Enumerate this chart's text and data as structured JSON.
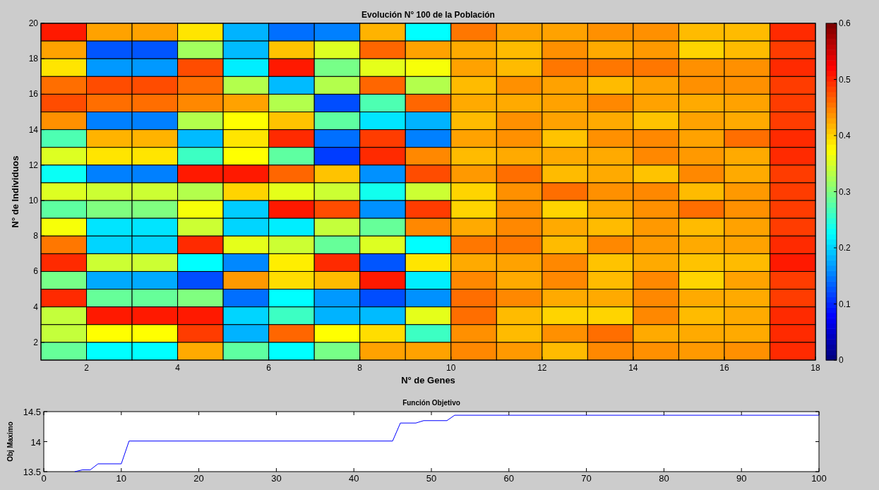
{
  "chart_data": [
    {
      "type": "heatmap",
      "title": "Evolución N° 100 de la Población",
      "xlabel": "N° de Genes",
      "ylabel": "N° de Individuos",
      "x": [
        1.5,
        2.5,
        3.5,
        4.5,
        5.5,
        6.5,
        7.5,
        8.5,
        9.5,
        10.5,
        11.5,
        12.5,
        13.5,
        14.5,
        15.5,
        16.5,
        17.5
      ],
      "xlim": [
        1,
        18
      ],
      "xticks": [
        2,
        4,
        6,
        8,
        10,
        12,
        14,
        16,
        18
      ],
      "ylim": [
        1,
        20
      ],
      "yticks": [
        2,
        4,
        6,
        8,
        10,
        12,
        14,
        16,
        18,
        20
      ],
      "clim": [
        0,
        0.6
      ],
      "cticks": [
        0,
        0.1,
        0.2,
        0.3,
        0.4,
        0.5,
        0.6
      ],
      "cells": [
        [
          0.51,
          0.43,
          0.43,
          0.39,
          0.18,
          0.14,
          0.15,
          0.42,
          0.225,
          0.455,
          0.43,
          0.43,
          0.44,
          0.44,
          0.415,
          0.415,
          0.5
        ],
        [
          0.43,
          0.125,
          0.125,
          0.32,
          0.185,
          0.41,
          0.355,
          0.465,
          0.43,
          0.425,
          0.415,
          0.44,
          0.425,
          0.435,
          0.4,
          0.415,
          0.49
        ],
        [
          0.39,
          0.165,
          0.165,
          0.48,
          0.215,
          0.51,
          0.295,
          0.36,
          0.37,
          0.43,
          0.415,
          0.455,
          0.455,
          0.455,
          0.44,
          0.44,
          0.5
        ],
        [
          0.46,
          0.48,
          0.48,
          0.46,
          0.33,
          0.185,
          0.33,
          0.465,
          0.33,
          0.415,
          0.44,
          0.43,
          0.415,
          0.43,
          0.44,
          0.44,
          0.49
        ],
        [
          0.48,
          0.46,
          0.46,
          0.445,
          0.43,
          0.33,
          0.12,
          0.27,
          0.465,
          0.425,
          0.425,
          0.43,
          0.445,
          0.43,
          0.425,
          0.43,
          0.49
        ],
        [
          0.44,
          0.15,
          0.15,
          0.33,
          0.375,
          0.41,
          0.28,
          0.21,
          0.18,
          0.415,
          0.44,
          0.43,
          0.425,
          0.41,
          0.43,
          0.425,
          0.49
        ],
        [
          0.27,
          0.42,
          0.42,
          0.185,
          0.39,
          0.5,
          0.14,
          0.49,
          0.15,
          0.43,
          0.44,
          0.41,
          0.44,
          0.445,
          0.43,
          0.46,
          0.5
        ],
        [
          0.355,
          0.39,
          0.39,
          0.26,
          0.375,
          0.28,
          0.11,
          0.5,
          0.445,
          0.415,
          0.425,
          0.425,
          0.425,
          0.445,
          0.435,
          0.425,
          0.5
        ],
        [
          0.23,
          0.15,
          0.15,
          0.51,
          0.51,
          0.465,
          0.41,
          0.16,
          0.48,
          0.435,
          0.46,
          0.415,
          0.425,
          0.41,
          0.445,
          0.425,
          0.49
        ],
        [
          0.355,
          0.345,
          0.345,
          0.33,
          0.4,
          0.36,
          0.345,
          0.235,
          0.345,
          0.4,
          0.44,
          0.46,
          0.44,
          0.445,
          0.415,
          0.435,
          0.49
        ],
        [
          0.28,
          0.3,
          0.3,
          0.37,
          0.195,
          0.51,
          0.48,
          0.16,
          0.49,
          0.4,
          0.44,
          0.4,
          0.425,
          0.44,
          0.46,
          0.44,
          0.49
        ],
        [
          0.37,
          0.21,
          0.21,
          0.345,
          0.2,
          0.215,
          0.34,
          0.285,
          0.445,
          0.425,
          0.445,
          0.425,
          0.415,
          0.435,
          0.415,
          0.43,
          0.49
        ],
        [
          0.455,
          0.2,
          0.2,
          0.5,
          0.36,
          0.345,
          0.285,
          0.355,
          0.225,
          0.455,
          0.455,
          0.415,
          0.445,
          0.435,
          0.425,
          0.43,
          0.5
        ],
        [
          0.5,
          0.345,
          0.345,
          0.225,
          0.155,
          0.385,
          0.5,
          0.125,
          0.39,
          0.425,
          0.43,
          0.445,
          0.41,
          0.425,
          0.41,
          0.415,
          0.51
        ],
        [
          0.295,
          0.175,
          0.175,
          0.12,
          0.435,
          0.395,
          0.415,
          0.51,
          0.215,
          0.445,
          0.425,
          0.445,
          0.415,
          0.445,
          0.4,
          0.43,
          0.49
        ],
        [
          0.5,
          0.285,
          0.285,
          0.3,
          0.14,
          0.225,
          0.165,
          0.12,
          0.16,
          0.46,
          0.445,
          0.425,
          0.425,
          0.445,
          0.425,
          0.425,
          0.49
        ],
        [
          0.34,
          0.51,
          0.51,
          0.51,
          0.2,
          0.26,
          0.18,
          0.185,
          0.36,
          0.46,
          0.415,
          0.4,
          0.4,
          0.445,
          0.415,
          0.425,
          0.5
        ],
        [
          0.34,
          0.375,
          0.375,
          0.49,
          0.18,
          0.465,
          0.375,
          0.395,
          0.26,
          0.44,
          0.415,
          0.44,
          0.46,
          0.425,
          0.425,
          0.425,
          0.5
        ],
        [
          0.285,
          0.225,
          0.225,
          0.425,
          0.28,
          0.225,
          0.295,
          0.43,
          0.43,
          0.445,
          0.435,
          0.415,
          0.445,
          0.44,
          0.435,
          0.44,
          0.5
        ]
      ]
    },
    {
      "type": "line",
      "title": "Función Objetivo",
      "ylabel": "Obj Maximo",
      "x": [
        4,
        5,
        6,
        7,
        10,
        11,
        45,
        46,
        48,
        49,
        52,
        53,
        100
      ],
      "xlim": [
        0,
        100
      ],
      "xticks": [
        0,
        10,
        20,
        30,
        40,
        50,
        60,
        70,
        80,
        90,
        100
      ],
      "ylim": [
        13.5,
        14.5
      ],
      "yticks": [
        13.5,
        14,
        14.5
      ],
      "series": [
        {
          "color": "#0000ff",
          "values": [
            13.5,
            13.53,
            13.53,
            13.63,
            13.63,
            14.01,
            14.01,
            14.31,
            14.31,
            14.35,
            14.35,
            14.44,
            14.44
          ]
        }
      ]
    }
  ]
}
